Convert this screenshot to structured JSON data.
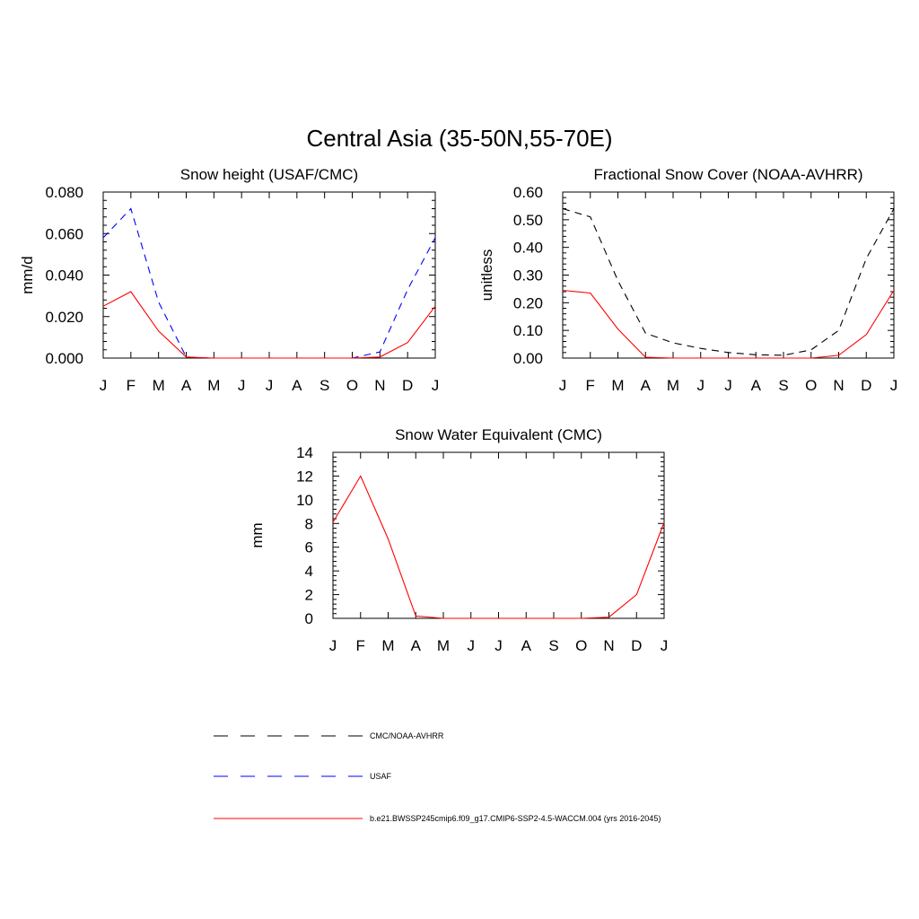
{
  "figure": {
    "title": "Central Asia (35-50N,55-70E)"
  },
  "chart_data": [
    {
      "type": "line",
      "title": "Snow height (USAF/CMC)",
      "xlabel": "",
      "ylabel": "mm/d",
      "categories": [
        "J",
        "F",
        "M",
        "A",
        "M",
        "J",
        "J",
        "A",
        "S",
        "O",
        "N",
        "D",
        "J"
      ],
      "yticks": [
        "0.000",
        "0.020",
        "0.040",
        "0.060",
        "0.080"
      ],
      "ylim": [
        0,
        0.08
      ],
      "grid": false,
      "series": [
        {
          "name": "USAF",
          "color": "#0000ff",
          "style": "dashed",
          "values": [
            0.058,
            0.072,
            0.027,
            0.0005,
            0,
            0,
            0,
            0,
            0,
            0,
            0.003,
            0.033,
            0.058
          ]
        },
        {
          "name": "b.e21.BWSSP245cmip6.f09_g17.CMIP6-SSP2-4.5-WACCM.004 (yrs 2016-2045)",
          "color": "#ff0000",
          "style": "solid",
          "values": [
            0.025,
            0.032,
            0.013,
            0.0005,
            0,
            0,
            0,
            0,
            0,
            0,
            0.0005,
            0.0075,
            0.025
          ]
        }
      ]
    },
    {
      "type": "line",
      "title": "Fractional Snow Cover (NOAA-AVHRR)",
      "xlabel": "",
      "ylabel": "unitless",
      "categories": [
        "J",
        "F",
        "M",
        "A",
        "M",
        "J",
        "J",
        "A",
        "S",
        "O",
        "N",
        "D",
        "J"
      ],
      "yticks": [
        "0.00",
        "0.10",
        "0.20",
        "0.30",
        "0.40",
        "0.50",
        "0.60"
      ],
      "ylim": [
        0,
        0.6
      ],
      "grid": false,
      "series": [
        {
          "name": "CMC/NOAA-AVHRR",
          "color": "#000000",
          "style": "dashed",
          "values": [
            0.54,
            0.51,
            0.28,
            0.09,
            0.055,
            0.035,
            0.02,
            0.012,
            0.01,
            0.03,
            0.1,
            0.36,
            0.54
          ]
        },
        {
          "name": "b.e21.BWSSP245cmip6.f09_g17.CMIP6-SSP2-4.5-WACCM.004 (yrs 2016-2045)",
          "color": "#ff0000",
          "style": "solid",
          "values": [
            0.245,
            0.235,
            0.105,
            0.003,
            0,
            0,
            0,
            0,
            0,
            0,
            0.01,
            0.085,
            0.245
          ]
        }
      ]
    },
    {
      "type": "line",
      "title": "Snow Water Equivalent (CMC)",
      "xlabel": "",
      "ylabel": "mm",
      "categories": [
        "J",
        "F",
        "M",
        "A",
        "M",
        "J",
        "J",
        "A",
        "S",
        "O",
        "N",
        "D",
        "J"
      ],
      "yticks": [
        "0",
        "2",
        "4",
        "6",
        "8",
        "10",
        "12",
        "14"
      ],
      "ylim": [
        0,
        14
      ],
      "grid": false,
      "series": [
        {
          "name": "CMC/NOAA-AVHRR",
          "color": "#000000",
          "style": "dashed",
          "values": [
            0,
            0,
            0,
            0,
            0,
            0,
            0,
            0,
            0,
            0,
            0,
            0,
            0
          ]
        },
        {
          "name": "b.e21.BWSSP245cmip6.f09_g17.CMIP6-SSP2-4.5-WACCM.004 (yrs 2016-2045)",
          "color": "#ff0000",
          "style": "solid",
          "values": [
            8.1,
            12.0,
            6.7,
            0.2,
            0,
            0,
            0,
            0,
            0,
            0,
            0.1,
            2.0,
            8.1
          ]
        }
      ]
    }
  ],
  "legend": {
    "placement": "bottom",
    "items": [
      {
        "label": "CMC/NOAA-AVHRR",
        "color": "#000000",
        "style": "dashed"
      },
      {
        "label": "USAF",
        "color": "#0000ff",
        "style": "dashed"
      },
      {
        "label": "b.e21.BWSSP245cmip6.f09_g17.CMIP6-SSP2-4.5-WACCM.004 (yrs 2016-2045)",
        "color": "#ff0000",
        "style": "solid"
      }
    ]
  }
}
